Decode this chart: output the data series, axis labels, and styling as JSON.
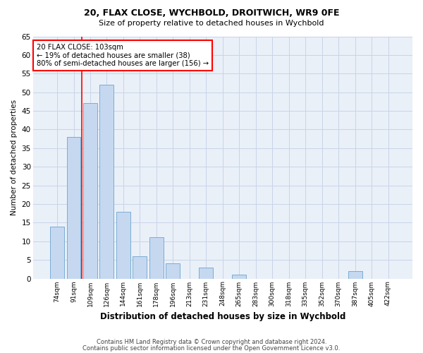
{
  "title1": "20, FLAX CLOSE, WYCHBOLD, DROITWICH, WR9 0FE",
  "title2": "Size of property relative to detached houses in Wychbold",
  "xlabel": "Distribution of detached houses by size in Wychbold",
  "ylabel": "Number of detached properties",
  "bar_labels": [
    "74sqm",
    "91sqm",
    "109sqm",
    "126sqm",
    "144sqm",
    "161sqm",
    "178sqm",
    "196sqm",
    "213sqm",
    "231sqm",
    "248sqm",
    "265sqm",
    "283sqm",
    "300sqm",
    "318sqm",
    "335sqm",
    "352sqm",
    "370sqm",
    "387sqm",
    "405sqm",
    "422sqm"
  ],
  "bar_values": [
    14,
    38,
    47,
    52,
    18,
    6,
    11,
    4,
    0,
    3,
    0,
    1,
    0,
    0,
    0,
    0,
    0,
    0,
    2,
    0,
    0
  ],
  "bar_color": "#c5d8f0",
  "bar_edgecolor": "#7aadd4",
  "annotation_text": "20 FLAX CLOSE: 103sqm\n← 19% of detached houses are smaller (38)\n80% of semi-detached houses are larger (156) →",
  "redline_x": 1.5,
  "ylim": [
    0,
    65
  ],
  "yticks": [
    0,
    5,
    10,
    15,
    20,
    25,
    30,
    35,
    40,
    45,
    50,
    55,
    60,
    65
  ],
  "footer1": "Contains HM Land Registry data © Crown copyright and database right 2024.",
  "footer2": "Contains public sector information licensed under the Open Government Licence v3.0.",
  "background_color": "#ffffff",
  "ax_background_color": "#eaf0f8",
  "grid_color": "#c8d4e8"
}
